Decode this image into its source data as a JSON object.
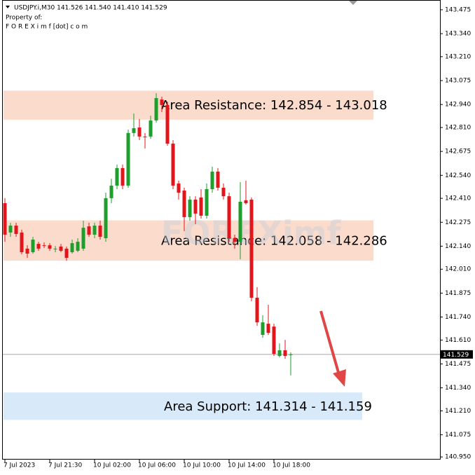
{
  "chart_data": {
    "type": "candlestick",
    "header": "USDJPY.i,M30  141.526 141.540 141.410 141.529",
    "property_label": "Property of:",
    "property_site": "F O R E X i m f [dot] c o m",
    "watermark": "FOREXimf",
    "up_color": "#1e9e2b",
    "down_color": "#e3151b",
    "grid": false,
    "ylim": [
      140.935,
      143.53
    ],
    "yticks": [
      143.475,
      {
        "value": 143.34,
        "label": "143.340"
      },
      {
        "value": 143.21,
        "label": "143.210"
      },
      143.075,
      {
        "value": 142.94,
        "label": "142.940"
      },
      {
        "value": 142.81,
        "label": "142.810"
      },
      142.675,
      {
        "value": 142.54,
        "label": "142.540"
      },
      {
        "value": 142.41,
        "label": "142.410"
      },
      142.275,
      {
        "value": 142.14,
        "label": "142.140"
      },
      {
        "value": 142.01,
        "label": "142.010"
      },
      141.875,
      {
        "value": 141.74,
        "label": "141.740"
      },
      {
        "value": 141.61,
        "label": "141.610"
      },
      141.475,
      {
        "value": 141.34,
        "label": "141.340"
      },
      {
        "value": 141.21,
        "label": "141.210"
      },
      141.075,
      {
        "value": 140.95,
        "label": "140.950"
      }
    ],
    "categories": [
      "7 Jul 2023",
      null,
      null,
      null,
      null,
      null,
      null,
      null,
      "7 Jul 21:30",
      null,
      null,
      null,
      null,
      null,
      null,
      null,
      "10 Jul 02:00",
      null,
      null,
      null,
      null,
      null,
      null,
      null,
      "10 Jul 06:00",
      null,
      null,
      null,
      null,
      null,
      null,
      null,
      "10 Jul 10:00",
      null,
      null,
      null,
      null,
      null,
      null,
      null,
      "10 Jul 14:00",
      null,
      null,
      null,
      null,
      null,
      null,
      null,
      "10 Jul 18:00",
      null,
      null,
      null
    ],
    "open": [
      142.383,
      142.217,
      142.256,
      142.217,
      142.126,
      142.106,
      142.153,
      142.145,
      142.145,
      142.126,
      142.138,
      142.126,
      142.106,
      142.114,
      142.126,
      142.252,
      142.205,
      142.256,
      142.185,
      142.411,
      142.482,
      142.581,
      142.482,
      142.779,
      142.81,
      142.759,
      142.759,
      142.85,
      142.968,
      142.937,
      142.719,
      142.494,
      142.454,
      142.304,
      142.403,
      142.415,
      142.312,
      142.462,
      142.561,
      142.47,
      142.422,
      142.185,
      142.165,
      142.399,
      142.403,
      141.849,
      141.639,
      141.702,
      141.686,
      141.52,
      141.552,
      141.526
    ],
    "high": [
      142.411,
      142.272,
      142.272,
      142.233,
      142.145,
      142.193,
      142.165,
      142.161,
      142.157,
      142.141,
      142.153,
      142.138,
      142.177,
      142.185,
      142.284,
      142.272,
      142.272,
      142.284,
      142.442,
      142.521,
      142.601,
      142.601,
      142.798,
      142.889,
      142.858,
      142.779,
      142.877,
      143.004,
      142.984,
      142.957,
      142.739,
      142.51,
      142.47,
      142.422,
      142.422,
      142.462,
      142.494,
      142.589,
      142.581,
      142.494,
      142.442,
      142.205,
      142.502,
      142.51,
      142.415,
      141.908,
      141.75,
      141.809,
      141.702,
      141.591,
      141.611,
      141.54
    ],
    "low": [
      142.165,
      142.193,
      142.193,
      142.094,
      142.074,
      142.098,
      142.114,
      142.13,
      142.114,
      142.106,
      142.106,
      142.058,
      142.098,
      142.106,
      142.114,
      142.193,
      142.185,
      142.177,
      142.165,
      142.383,
      142.462,
      142.462,
      142.47,
      142.759,
      142.739,
      142.692,
      142.747,
      142.838,
      142.897,
      142.707,
      142.462,
      142.403,
      142.225,
      142.284,
      142.264,
      142.296,
      142.296,
      142.442,
      142.454,
      142.403,
      142.165,
      142.126,
      142.066,
      142.375,
      141.829,
      141.69,
      141.623,
      141.639,
      141.52,
      141.512,
      141.504,
      141.41
    ],
    "close": [
      142.205,
      142.256,
      142.209,
      142.106,
      142.098,
      142.177,
      142.126,
      142.141,
      142.126,
      142.126,
      142.114,
      142.074,
      142.157,
      142.165,
      142.244,
      142.205,
      142.256,
      142.193,
      142.411,
      142.482,
      142.581,
      142.482,
      142.779,
      142.806,
      142.759,
      142.755,
      142.85,
      142.976,
      142.937,
      142.719,
      142.482,
      142.442,
      142.304,
      142.403,
      142.324,
      142.312,
      142.462,
      142.561,
      142.47,
      142.422,
      142.185,
      142.165,
      142.391,
      142.383,
      141.849,
      141.71,
      141.71,
      141.651,
      141.532,
      141.552,
      141.52,
      141.529
    ],
    "last_price": 141.529,
    "zones": [
      {
        "label": "Area Resistance: 142.854 - 143.018",
        "low": 142.854,
        "high": 143.018,
        "color": "#fbdccc"
      },
      {
        "label": "Area Resistance: 142.058 - 142.286",
        "low": 142.058,
        "high": 142.286,
        "color": "#fbdccc"
      },
      {
        "label": "Area Support: 141.314 - 141.159",
        "low": 141.159,
        "high": 141.314,
        "color": "#d8e9f9"
      }
    ]
  }
}
